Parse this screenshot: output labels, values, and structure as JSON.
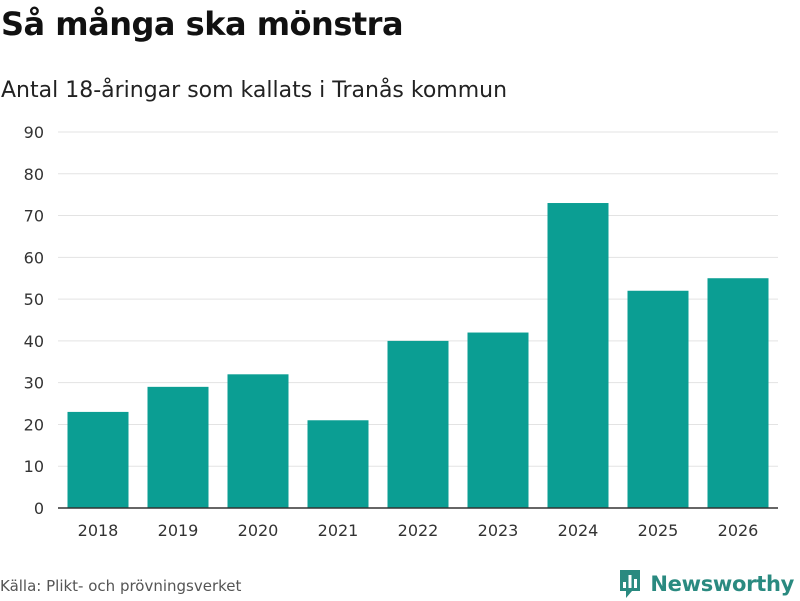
{
  "header": {
    "title": "Så många ska mönstra"
  },
  "chart_data": {
    "type": "bar",
    "title": "Så många ska mönstra",
    "subtitle": "Antal 18-åringar som kallats i Tranås kommun",
    "categories": [
      "2018",
      "2019",
      "2020",
      "2021",
      "2022",
      "2023",
      "2024",
      "2025",
      "2026"
    ],
    "values": [
      23,
      29,
      32,
      21,
      40,
      42,
      73,
      52,
      55
    ],
    "ylim": [
      0,
      90
    ],
    "yticks": [
      0,
      10,
      20,
      30,
      40,
      50,
      60,
      70,
      80,
      90
    ],
    "xlabel": "",
    "ylabel": "",
    "grid": true,
    "bar_color": "#0b9e93"
  },
  "footer": {
    "source": "Källa: Plikt- och prövningsverket",
    "brand": "Newsworthy",
    "brand_color": "#2a8a80"
  }
}
